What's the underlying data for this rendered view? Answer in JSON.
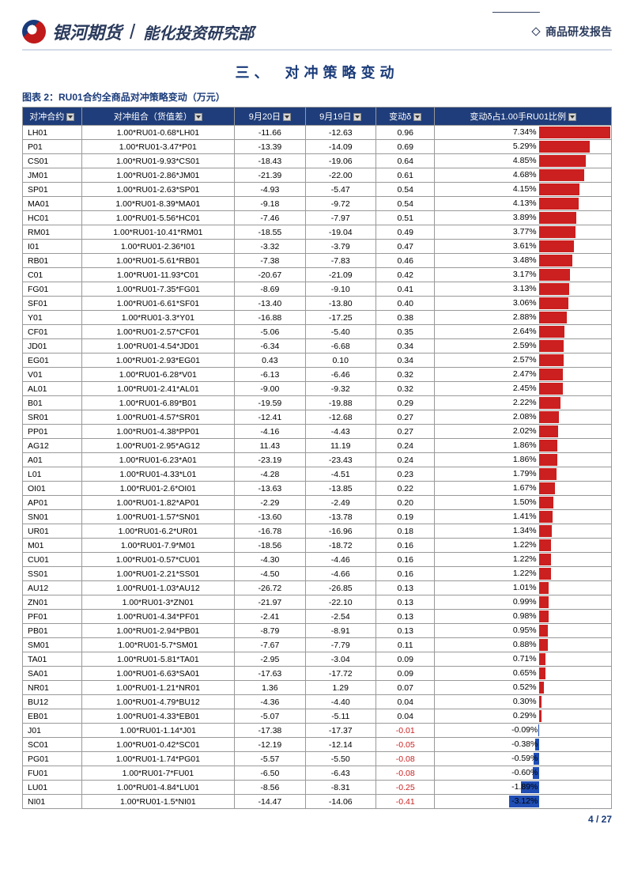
{
  "brand": "银河期货",
  "department": "能化投资研究部",
  "report_type": "商品研发报告",
  "section_title": "三、　对冲策略变动",
  "figure_title": "图表 2：RU01合约全商品对冲策略变动（万元）",
  "page_footer": "4 / 27",
  "columns": [
    "对冲合约",
    "对冲组合（货值差）",
    "9月20日",
    "9月19日",
    "变动δ",
    "变动δ占1.00手RU01比例"
  ],
  "bar_axis_center": 59,
  "bar_scale_per_pct": 5.5,
  "bar_pos_color": "#cc1f1f",
  "bar_neg_color": "#1f4db3",
  "neg_text_color": "#cc1f1f",
  "rows": [
    {
      "c": "LH01",
      "p": "1.00*RU01-0.68*LH01",
      "a": "-11.66",
      "b": "-12.63",
      "d": "0.96",
      "r": "7.34%",
      "v": 7.34
    },
    {
      "c": "P01",
      "p": "1.00*RU01-3.47*P01",
      "a": "-13.39",
      "b": "-14.09",
      "d": "0.69",
      "r": "5.29%",
      "v": 5.29
    },
    {
      "c": "CS01",
      "p": "1.00*RU01-9.93*CS01",
      "a": "-18.43",
      "b": "-19.06",
      "d": "0.64",
      "r": "4.85%",
      "v": 4.85
    },
    {
      "c": "JM01",
      "p": "1.00*RU01-2.86*JM01",
      "a": "-21.39",
      "b": "-22.00",
      "d": "0.61",
      "r": "4.68%",
      "v": 4.68
    },
    {
      "c": "SP01",
      "p": "1.00*RU01-2.63*SP01",
      "a": "-4.93",
      "b": "-5.47",
      "d": "0.54",
      "r": "4.15%",
      "v": 4.15
    },
    {
      "c": "MA01",
      "p": "1.00*RU01-8.39*MA01",
      "a": "-9.18",
      "b": "-9.72",
      "d": "0.54",
      "r": "4.13%",
      "v": 4.13
    },
    {
      "c": "HC01",
      "p": "1.00*RU01-5.56*HC01",
      "a": "-7.46",
      "b": "-7.97",
      "d": "0.51",
      "r": "3.89%",
      "v": 3.89
    },
    {
      "c": "RM01",
      "p": "1.00*RU01-10.41*RM01",
      "a": "-18.55",
      "b": "-19.04",
      "d": "0.49",
      "r": "3.77%",
      "v": 3.77
    },
    {
      "c": "I01",
      "p": "1.00*RU01-2.36*I01",
      "a": "-3.32",
      "b": "-3.79",
      "d": "0.47",
      "r": "3.61%",
      "v": 3.61
    },
    {
      "c": "RB01",
      "p": "1.00*RU01-5.61*RB01",
      "a": "-7.38",
      "b": "-7.83",
      "d": "0.46",
      "r": "3.48%",
      "v": 3.48
    },
    {
      "c": "C01",
      "p": "1.00*RU01-11.93*C01",
      "a": "-20.67",
      "b": "-21.09",
      "d": "0.42",
      "r": "3.17%",
      "v": 3.17
    },
    {
      "c": "FG01",
      "p": "1.00*RU01-7.35*FG01",
      "a": "-8.69",
      "b": "-9.10",
      "d": "0.41",
      "r": "3.13%",
      "v": 3.13
    },
    {
      "c": "SF01",
      "p": "1.00*RU01-6.61*SF01",
      "a": "-13.40",
      "b": "-13.80",
      "d": "0.40",
      "r": "3.06%",
      "v": 3.06
    },
    {
      "c": "Y01",
      "p": "1.00*RU01-3.3*Y01",
      "a": "-16.88",
      "b": "-17.25",
      "d": "0.38",
      "r": "2.88%",
      "v": 2.88
    },
    {
      "c": "CF01",
      "p": "1.00*RU01-2.57*CF01",
      "a": "-5.06",
      "b": "-5.40",
      "d": "0.35",
      "r": "2.64%",
      "v": 2.64
    },
    {
      "c": "JD01",
      "p": "1.00*RU01-4.54*JD01",
      "a": "-6.34",
      "b": "-6.68",
      "d": "0.34",
      "r": "2.59%",
      "v": 2.59
    },
    {
      "c": "EG01",
      "p": "1.00*RU01-2.93*EG01",
      "a": "0.43",
      "b": "0.10",
      "d": "0.34",
      "r": "2.57%",
      "v": 2.57
    },
    {
      "c": "V01",
      "p": "1.00*RU01-6.28*V01",
      "a": "-6.13",
      "b": "-6.46",
      "d": "0.32",
      "r": "2.47%",
      "v": 2.47
    },
    {
      "c": "AL01",
      "p": "1.00*RU01-2.41*AL01",
      "a": "-9.00",
      "b": "-9.32",
      "d": "0.32",
      "r": "2.45%",
      "v": 2.45
    },
    {
      "c": "B01",
      "p": "1.00*RU01-6.89*B01",
      "a": "-19.59",
      "b": "-19.88",
      "d": "0.29",
      "r": "2.22%",
      "v": 2.22
    },
    {
      "c": "SR01",
      "p": "1.00*RU01-4.57*SR01",
      "a": "-12.41",
      "b": "-12.68",
      "d": "0.27",
      "r": "2.08%",
      "v": 2.08
    },
    {
      "c": "PP01",
      "p": "1.00*RU01-4.38*PP01",
      "a": "-4.16",
      "b": "-4.43",
      "d": "0.27",
      "r": "2.02%",
      "v": 2.02
    },
    {
      "c": "AG12",
      "p": "1.00*RU01-2.95*AG12",
      "a": "11.43",
      "b": "11.19",
      "d": "0.24",
      "r": "1.86%",
      "v": 1.86
    },
    {
      "c": "A01",
      "p": "1.00*RU01-6.23*A01",
      "a": "-23.19",
      "b": "-23.43",
      "d": "0.24",
      "r": "1.86%",
      "v": 1.86
    },
    {
      "c": "L01",
      "p": "1.00*RU01-4.33*L01",
      "a": "-4.28",
      "b": "-4.51",
      "d": "0.23",
      "r": "1.79%",
      "v": 1.79
    },
    {
      "c": "OI01",
      "p": "1.00*RU01-2.6*OI01",
      "a": "-13.63",
      "b": "-13.85",
      "d": "0.22",
      "r": "1.67%",
      "v": 1.67
    },
    {
      "c": "AP01",
      "p": "1.00*RU01-1.82*AP01",
      "a": "-2.29",
      "b": "-2.49",
      "d": "0.20",
      "r": "1.50%",
      "v": 1.5
    },
    {
      "c": "SN01",
      "p": "1.00*RU01-1.57*SN01",
      "a": "-13.60",
      "b": "-13.78",
      "d": "0.19",
      "r": "1.41%",
      "v": 1.41
    },
    {
      "c": "UR01",
      "p": "1.00*RU01-6.2*UR01",
      "a": "-16.78",
      "b": "-16.96",
      "d": "0.18",
      "r": "1.34%",
      "v": 1.34
    },
    {
      "c": "M01",
      "p": "1.00*RU01-7.9*M01",
      "a": "-18.56",
      "b": "-18.72",
      "d": "0.16",
      "r": "1.22%",
      "v": 1.22
    },
    {
      "c": "CU01",
      "p": "1.00*RU01-0.57*CU01",
      "a": "-4.30",
      "b": "-4.46",
      "d": "0.16",
      "r": "1.22%",
      "v": 1.22
    },
    {
      "c": "SS01",
      "p": "1.00*RU01-2.21*SS01",
      "a": "-4.50",
      "b": "-4.66",
      "d": "0.16",
      "r": "1.22%",
      "v": 1.22
    },
    {
      "c": "AU12",
      "p": "1.00*RU01-1.03*AU12",
      "a": "-26.72",
      "b": "-26.85",
      "d": "0.13",
      "r": "1.01%",
      "v": 1.01
    },
    {
      "c": "ZN01",
      "p": "1.00*RU01-3*ZN01",
      "a": "-21.97",
      "b": "-22.10",
      "d": "0.13",
      "r": "0.99%",
      "v": 0.99
    },
    {
      "c": "PF01",
      "p": "1.00*RU01-4.34*PF01",
      "a": "-2.41",
      "b": "-2.54",
      "d": "0.13",
      "r": "0.98%",
      "v": 0.98
    },
    {
      "c": "PB01",
      "p": "1.00*RU01-2.94*PB01",
      "a": "-8.79",
      "b": "-8.91",
      "d": "0.13",
      "r": "0.95%",
      "v": 0.95
    },
    {
      "c": "SM01",
      "p": "1.00*RU01-5.7*SM01",
      "a": "-7.67",
      "b": "-7.79",
      "d": "0.11",
      "r": "0.88%",
      "v": 0.88
    },
    {
      "c": "TA01",
      "p": "1.00*RU01-5.81*TA01",
      "a": "-2.95",
      "b": "-3.04",
      "d": "0.09",
      "r": "0.71%",
      "v": 0.71
    },
    {
      "c": "SA01",
      "p": "1.00*RU01-6.63*SA01",
      "a": "-17.63",
      "b": "-17.72",
      "d": "0.09",
      "r": "0.65%",
      "v": 0.65
    },
    {
      "c": "NR01",
      "p": "1.00*RU01-1.21*NR01",
      "a": "1.36",
      "b": "1.29",
      "d": "0.07",
      "r": "0.52%",
      "v": 0.52
    },
    {
      "c": "BU12",
      "p": "1.00*RU01-4.79*BU12",
      "a": "-4.36",
      "b": "-4.40",
      "d": "0.04",
      "r": "0.30%",
      "v": 0.3
    },
    {
      "c": "EB01",
      "p": "1.00*RU01-4.33*EB01",
      "a": "-5.07",
      "b": "-5.11",
      "d": "0.04",
      "r": "0.29%",
      "v": 0.29
    },
    {
      "c": "J01",
      "p": "1.00*RU01-1.14*J01",
      "a": "-17.38",
      "b": "-17.37",
      "d": "-0.01",
      "r": "-0.09%",
      "v": -0.09
    },
    {
      "c": "SC01",
      "p": "1.00*RU01-0.42*SC01",
      "a": "-12.19",
      "b": "-12.14",
      "d": "-0.05",
      "r": "-0.38%",
      "v": -0.38
    },
    {
      "c": "PG01",
      "p": "1.00*RU01-1.74*PG01",
      "a": "-5.57",
      "b": "-5.50",
      "d": "-0.08",
      "r": "-0.59%",
      "v": -0.59
    },
    {
      "c": "FU01",
      "p": "1.00*RU01-7*FU01",
      "a": "-6.50",
      "b": "-6.43",
      "d": "-0.08",
      "r": "-0.60%",
      "v": -0.6
    },
    {
      "c": "LU01",
      "p": "1.00*RU01-4.84*LU01",
      "a": "-8.56",
      "b": "-8.31",
      "d": "-0.25",
      "r": "-1.89%",
      "v": -1.89
    },
    {
      "c": "NI01",
      "p": "1.00*RU01-1.5*NI01",
      "a": "-14.47",
      "b": "-14.06",
      "d": "-0.41",
      "r": "-3.12%",
      "v": -3.12
    }
  ]
}
